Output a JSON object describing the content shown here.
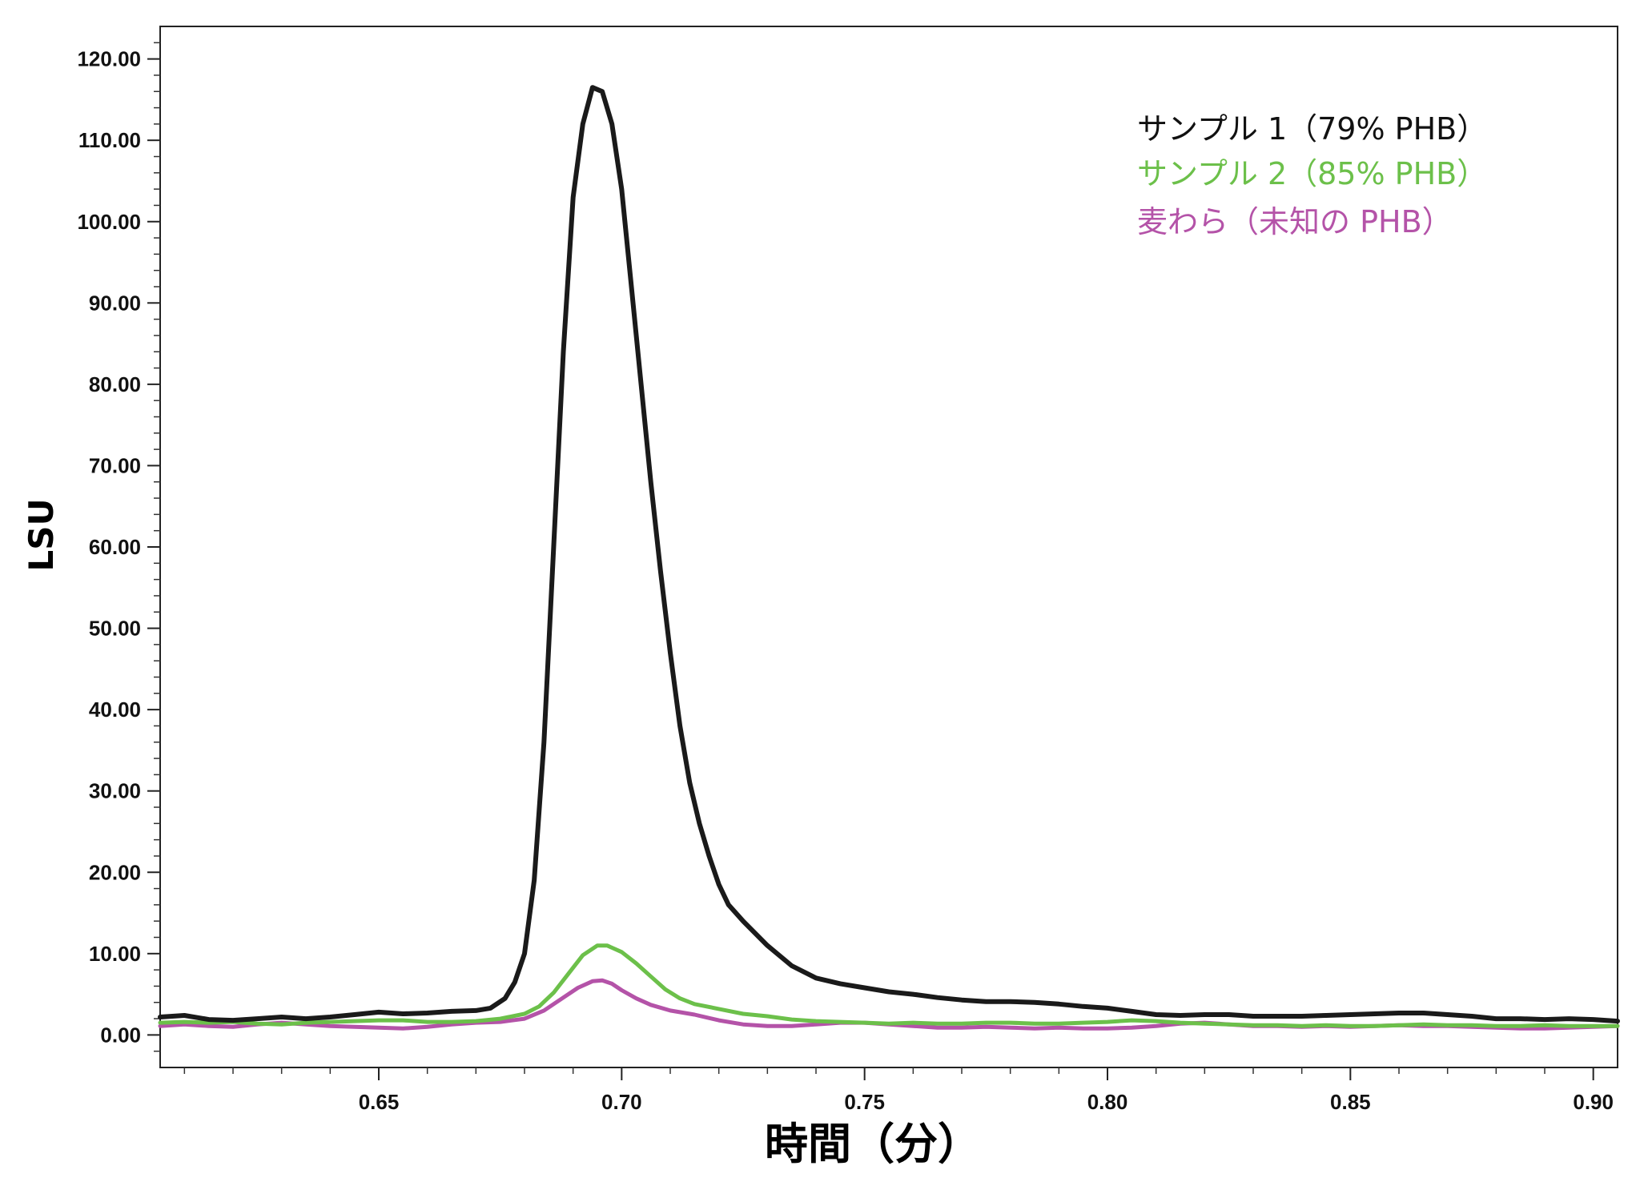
{
  "chart_data": {
    "type": "line",
    "xlabel": "時間（分）",
    "ylabel": "LSU",
    "xlim": [
      0.605,
      0.905
    ],
    "ylim": [
      -4,
      124
    ],
    "xticks": [
      {
        "value": 0.65,
        "label": "0.65"
      },
      {
        "value": 0.7,
        "label": "0.70"
      },
      {
        "value": 0.75,
        "label": "0.75"
      },
      {
        "value": 0.8,
        "label": "0.80"
      },
      {
        "value": 0.85,
        "label": "0.85"
      },
      {
        "value": 0.9,
        "label": "0.90"
      }
    ],
    "yticks": [
      {
        "value": 0,
        "label": "0.00"
      },
      {
        "value": 10,
        "label": "10.00"
      },
      {
        "value": 20,
        "label": "20.00"
      },
      {
        "value": 30,
        "label": "30.00"
      },
      {
        "value": 40,
        "label": "40.00"
      },
      {
        "value": 50,
        "label": "50.00"
      },
      {
        "value": 60,
        "label": "60.00"
      },
      {
        "value": 70,
        "label": "70.00"
      },
      {
        "value": 80,
        "label": "80.00"
      },
      {
        "value": 90,
        "label": "90.00"
      },
      {
        "value": 100,
        "label": "100.00"
      },
      {
        "value": 110,
        "label": "110.00"
      },
      {
        "value": 120,
        "label": "120.00"
      }
    ],
    "legend_position": "top-right",
    "grid": false,
    "series": [
      {
        "name": "サンプル 1（79% PHB）",
        "color": "#1a1a1a",
        "x": [
          0.605,
          0.61,
          0.615,
          0.62,
          0.625,
          0.63,
          0.635,
          0.64,
          0.645,
          0.65,
          0.655,
          0.66,
          0.665,
          0.67,
          0.673,
          0.676,
          0.678,
          0.68,
          0.682,
          0.684,
          0.686,
          0.688,
          0.69,
          0.692,
          0.694,
          0.696,
          0.698,
          0.7,
          0.702,
          0.704,
          0.706,
          0.708,
          0.71,
          0.712,
          0.714,
          0.716,
          0.718,
          0.72,
          0.722,
          0.725,
          0.73,
          0.735,
          0.74,
          0.745,
          0.75,
          0.755,
          0.76,
          0.765,
          0.77,
          0.775,
          0.78,
          0.785,
          0.79,
          0.795,
          0.8,
          0.805,
          0.81,
          0.815,
          0.82,
          0.825,
          0.83,
          0.835,
          0.84,
          0.845,
          0.85,
          0.855,
          0.86,
          0.865,
          0.87,
          0.875,
          0.88,
          0.885,
          0.89,
          0.895,
          0.9,
          0.905
        ],
        "y": [
          2.2,
          2.4,
          1.9,
          1.8,
          2.0,
          2.2,
          2.0,
          2.2,
          2.5,
          2.8,
          2.6,
          2.7,
          2.9,
          3.0,
          3.3,
          4.5,
          6.5,
          10,
          19,
          36,
          60,
          84,
          103,
          112,
          116.5,
          116.0,
          112,
          104,
          92,
          80,
          68,
          57,
          47,
          38,
          31,
          26,
          22,
          18.5,
          16,
          14,
          11,
          8.5,
          7,
          6.3,
          5.8,
          5.3,
          5.0,
          4.6,
          4.3,
          4.1,
          4.1,
          4.0,
          3.8,
          3.5,
          3.3,
          2.9,
          2.5,
          2.4,
          2.5,
          2.5,
          2.3,
          2.3,
          2.3,
          2.4,
          2.5,
          2.6,
          2.7,
          2.7,
          2.5,
          2.3,
          2.0,
          2.0,
          1.9,
          2.0,
          1.9,
          1.7
        ]
      },
      {
        "name": "サンプル 2（85% PHB）",
        "color": "#6cc04a",
        "x": [
          0.605,
          0.61,
          0.615,
          0.62,
          0.625,
          0.63,
          0.635,
          0.64,
          0.645,
          0.65,
          0.655,
          0.66,
          0.665,
          0.67,
          0.675,
          0.68,
          0.683,
          0.686,
          0.689,
          0.692,
          0.695,
          0.697,
          0.7,
          0.703,
          0.706,
          0.709,
          0.712,
          0.715,
          0.72,
          0.725,
          0.73,
          0.735,
          0.74,
          0.745,
          0.75,
          0.755,
          0.76,
          0.765,
          0.77,
          0.775,
          0.78,
          0.785,
          0.79,
          0.795,
          0.8,
          0.805,
          0.81,
          0.815,
          0.82,
          0.825,
          0.83,
          0.835,
          0.84,
          0.845,
          0.85,
          0.855,
          0.86,
          0.865,
          0.87,
          0.875,
          0.88,
          0.885,
          0.89,
          0.895,
          0.9,
          0.905
        ],
        "y": [
          1.5,
          1.6,
          1.5,
          1.6,
          1.4,
          1.3,
          1.5,
          1.6,
          1.7,
          1.8,
          1.8,
          1.6,
          1.6,
          1.7,
          2.0,
          2.6,
          3.5,
          5.2,
          7.5,
          9.8,
          11.0,
          11.0,
          10.2,
          8.8,
          7.2,
          5.6,
          4.5,
          3.8,
          3.2,
          2.6,
          2.3,
          1.9,
          1.7,
          1.6,
          1.5,
          1.4,
          1.5,
          1.4,
          1.4,
          1.5,
          1.5,
          1.4,
          1.4,
          1.5,
          1.6,
          1.8,
          1.7,
          1.5,
          1.4,
          1.3,
          1.2,
          1.2,
          1.1,
          1.2,
          1.1,
          1.1,
          1.2,
          1.3,
          1.2,
          1.2,
          1.1,
          1.1,
          1.2,
          1.1,
          1.1,
          1.1
        ]
      },
      {
        "name": "麦わら（未知の PHB）",
        "color": "#b453a8",
        "x": [
          0.605,
          0.61,
          0.615,
          0.62,
          0.625,
          0.63,
          0.635,
          0.64,
          0.645,
          0.65,
          0.655,
          0.66,
          0.665,
          0.67,
          0.675,
          0.68,
          0.684,
          0.688,
          0.691,
          0.694,
          0.696,
          0.698,
          0.7,
          0.703,
          0.706,
          0.71,
          0.715,
          0.72,
          0.725,
          0.73,
          0.735,
          0.74,
          0.745,
          0.75,
          0.755,
          0.76,
          0.765,
          0.77,
          0.775,
          0.78,
          0.785,
          0.79,
          0.795,
          0.8,
          0.805,
          0.81,
          0.815,
          0.82,
          0.825,
          0.83,
          0.835,
          0.84,
          0.845,
          0.85,
          0.855,
          0.86,
          0.865,
          0.87,
          0.875,
          0.88,
          0.885,
          0.89,
          0.895,
          0.9,
          0.905
        ],
        "y": [
          1.1,
          1.3,
          1.1,
          1.0,
          1.3,
          1.5,
          1.3,
          1.1,
          1.0,
          0.9,
          0.8,
          1.0,
          1.3,
          1.5,
          1.6,
          2.0,
          3.0,
          4.6,
          5.8,
          6.6,
          6.7,
          6.3,
          5.5,
          4.5,
          3.7,
          3.0,
          2.5,
          1.8,
          1.3,
          1.1,
          1.1,
          1.3,
          1.5,
          1.5,
          1.3,
          1.1,
          0.9,
          0.9,
          1.0,
          0.9,
          0.8,
          0.9,
          0.8,
          0.8,
          0.9,
          1.1,
          1.4,
          1.5,
          1.3,
          1.1,
          1.1,
          1.0,
          1.1,
          1.0,
          1.1,
          1.2,
          1.1,
          1.1,
          1.0,
          0.9,
          0.8,
          0.8,
          0.9,
          1.0,
          1.1
        ]
      }
    ]
  }
}
